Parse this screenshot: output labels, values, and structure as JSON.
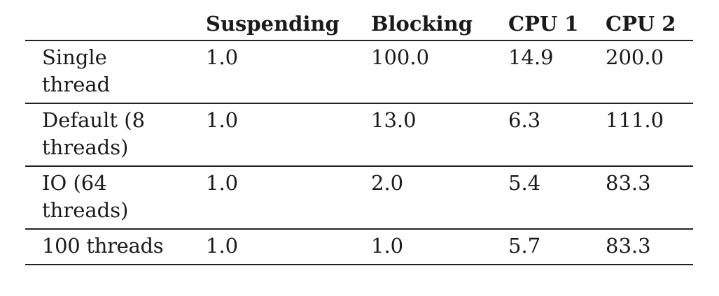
{
  "table": {
    "headers": [
      "",
      "Suspending",
      "Blocking",
      "CPU 1",
      "CPU 2"
    ],
    "rows": [
      {
        "label_line1": "Single",
        "label_line2": "thread",
        "values": [
          "1.0",
          "100.0",
          "14.9",
          "200.0"
        ]
      },
      {
        "label_line1": "Default (8",
        "label_line2": "threads)",
        "values": [
          "1.0",
          "13.0",
          "6.3",
          "111.0"
        ]
      },
      {
        "label_line1": "IO (64",
        "label_line2": "threads)",
        "values": [
          "1.0",
          "2.0",
          "5.4",
          "83.3"
        ]
      },
      {
        "label_line1": "100 threads",
        "label_line2": "",
        "values": [
          "1.0",
          "1.0",
          "5.7",
          "83.3"
        ]
      }
    ]
  }
}
